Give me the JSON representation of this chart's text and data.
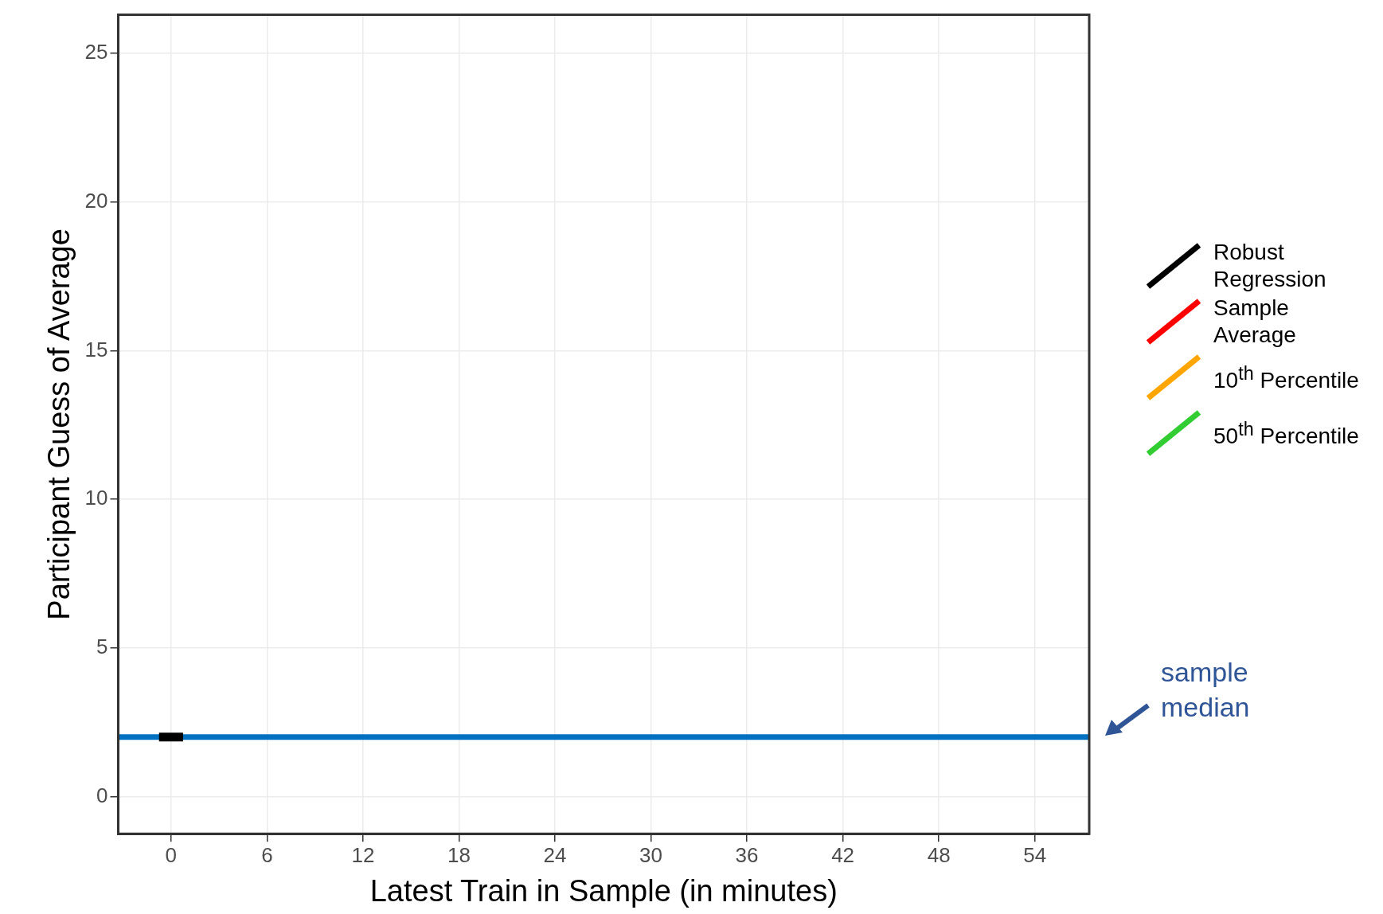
{
  "chart_data": {
    "type": "line",
    "xlabel": "Latest Train in Sample (in minutes)",
    "ylabel": "Participant Guess of Average",
    "xlim": [
      -3.3,
      57.4
    ],
    "xticks": [
      0,
      6,
      12,
      18,
      24,
      30,
      36,
      42,
      48,
      54
    ],
    "ylim": [
      -1.25,
      26.3
    ],
    "yticks": [
      0,
      5,
      10,
      15,
      20,
      25
    ],
    "grid": true,
    "legend": "right",
    "marker": "none",
    "series": [
      {
        "name": "Robust Regression",
        "color": "#000000",
        "x": [
          -0.75,
          0.75
        ],
        "values": [
          2,
          2
        ]
      },
      {
        "name": "Sample Average",
        "color": "#ff0000"
      },
      {
        "name": "10$^{th}$ Percentile",
        "color": "#ffa500"
      },
      {
        "name": "50$^{th}$ Percentile",
        "color": "#32cd32"
      }
    ],
    "ref_lines": [
      {
        "axis": "y",
        "value": 2,
        "label": "sample median",
        "color": "#0070c0"
      }
    ]
  }
}
